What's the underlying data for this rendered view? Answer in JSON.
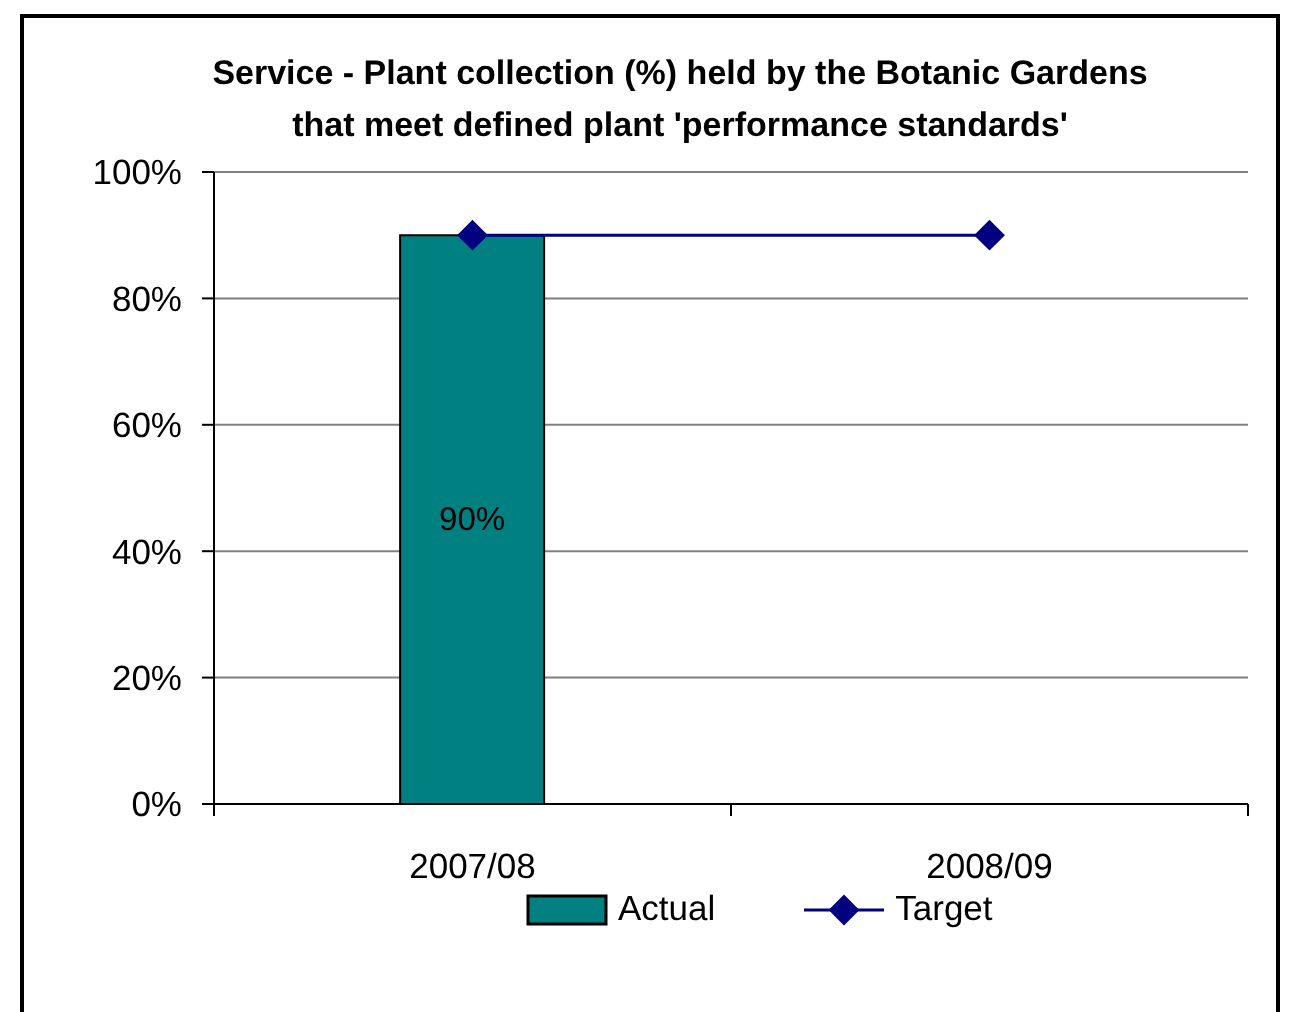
{
  "chart_data": {
    "type": "bar",
    "title": "Service - Plant collection (%) held by the Botanic Gardens\nthat meet defined plant 'performance standards'",
    "categories": [
      "2007/08",
      "2008/09"
    ],
    "series": [
      {
        "name": "Actual",
        "color": "#008080",
        "values": [
          90,
          null
        ],
        "value_labels": [
          "90%",
          null
        ]
      },
      {
        "name": "Target",
        "type": "line",
        "color": "#000080",
        "values": [
          90,
          90
        ],
        "marker": "diamond"
      }
    ],
    "ylim": [
      0,
      100
    ],
    "yticks": [
      {
        "value": 0,
        "label": "0%"
      },
      {
        "value": 20,
        "label": "20%"
      },
      {
        "value": 40,
        "label": "40%"
      },
      {
        "value": 60,
        "label": "60%"
      },
      {
        "value": 80,
        "label": "80%"
      },
      {
        "value": 100,
        "label": "100%"
      }
    ],
    "grid": "y",
    "legend": "bottom"
  }
}
